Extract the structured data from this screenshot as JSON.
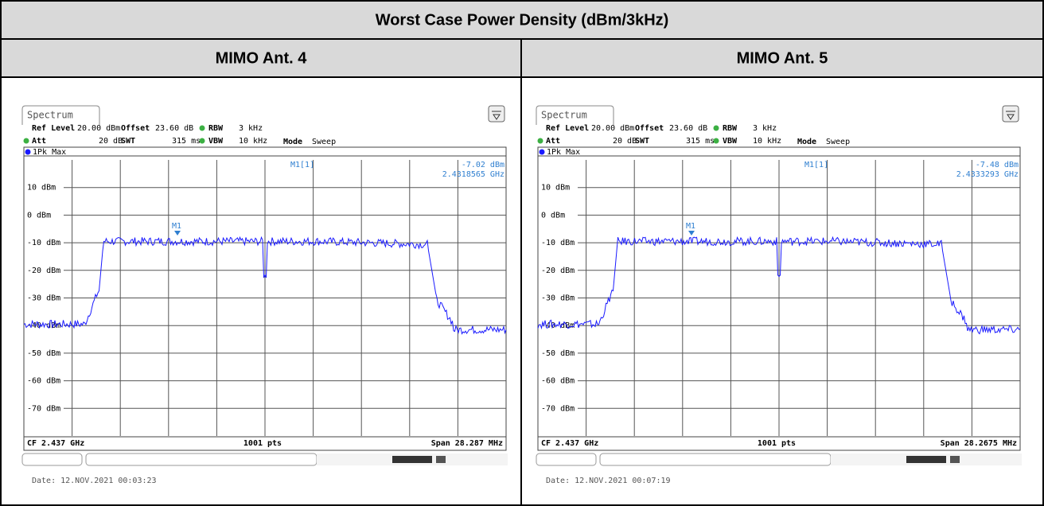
{
  "table": {
    "title": "Worst Case Power Density (dBm/3kHz)",
    "columns": [
      "MIMO Ant. 4",
      "MIMO Ant. 5"
    ],
    "panels": [
      {
        "tab": "Spectrum",
        "ref_level_label": "Ref Level",
        "ref_level": "20.00 dBm",
        "offset_label": "Offset",
        "offset": "23.60 dB",
        "rbw_label": "RBW",
        "rbw": "3 kHz",
        "att_label": "Att",
        "att": "20 dB",
        "swt_label": "SWT",
        "swt": "315 ms",
        "vbw_label": "VBW",
        "vbw": "10 kHz",
        "mode_label": "Mode",
        "mode": "Sweep",
        "trace": "1Pk Max",
        "marker_name": "M1[1]",
        "marker_level": "-7.02 dBm",
        "marker_freq": "2.4318565 GHz",
        "marker": "M1",
        "y_labels": [
          "10 dBm",
          "0 dBm",
          "-10 dBm",
          "-20 dBm",
          "-30 dBm",
          "-40 dBm",
          "-50 dBm",
          "-60 dBm",
          "-70 dBm"
        ],
        "cf": "CF 2.437 GHz",
        "points": "1001 pts",
        "span": "Span 28.287 MHz",
        "date": "Date: 12.NOV.2021  00:03:23"
      },
      {
        "tab": "Spectrum",
        "ref_level_label": "Ref Level",
        "ref_level": "20.00 dBm",
        "offset_label": "Offset",
        "offset": "23.60 dB",
        "rbw_label": "RBW",
        "rbw": "3 kHz",
        "att_label": "Att",
        "att": "20 dB",
        "swt_label": "SWT",
        "swt": "315 ms",
        "vbw_label": "VBW",
        "vbw": "10 kHz",
        "mode_label": "Mode",
        "mode": "Sweep",
        "trace": "1Pk Max",
        "marker_name": "M1[1]",
        "marker_level": "-7.48 dBm",
        "marker_freq": "2.4333293 GHz",
        "marker": "M1",
        "y_labels": [
          "10 dBm",
          "0 dBm",
          "-10 dBm",
          "-20 dBm",
          "-30 dBm",
          "-40 dBm",
          "-50 dBm",
          "-60 dBm",
          "-70 dBm"
        ],
        "cf": "CF 2.437 GHz",
        "points": "1001 pts",
        "span": "Span 28.2675 MHz",
        "date": "Date: 12.NOV.2021  00:07:19"
      }
    ]
  }
}
